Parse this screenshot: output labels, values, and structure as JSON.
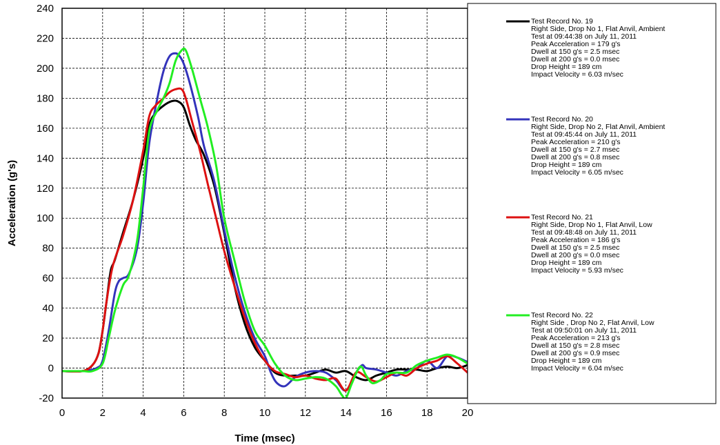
{
  "chart_data": {
    "type": "line",
    "title": "",
    "xlabel": "Time (msec)",
    "ylabel": "Acceleration (g's)",
    "xlim": [
      0,
      20
    ],
    "ylim": [
      -20,
      240
    ],
    "xticks": [
      0,
      2,
      4,
      6,
      8,
      10,
      12,
      14,
      16,
      18,
      20
    ],
    "yticks": [
      -20,
      0,
      20,
      40,
      60,
      80,
      100,
      120,
      140,
      160,
      180,
      200,
      220,
      240
    ],
    "grid": true,
    "legend_position": "right",
    "series": [
      {
        "name": "Test Record No. 19",
        "color": "#000000",
        "details": [
          "Right Side, Drop No 1, Flat Anvil, Ambient",
          "Test at 09:44:38 on July 11, 2011",
          "Peak Acceleration = 179 g's",
          "Dwell at 150 g's = 2.5 msec",
          "Dwell at 200 g's = 0.0 msec",
          "Drop Height = 189 cm",
          "Impact Velocity = 6.03 m/sec"
        ],
        "x": [
          0,
          1,
          1.5,
          1.8,
          2,
          2.2,
          2.4,
          2.6,
          3,
          3.5,
          4,
          4.3,
          4.6,
          5,
          5.4,
          5.7,
          6,
          6.3,
          6.6,
          7,
          7.5,
          8,
          8.5,
          9,
          9.5,
          10,
          10.5,
          11,
          11.5,
          12,
          12.5,
          13,
          13.5,
          14,
          14.5,
          15,
          15.5,
          16,
          16.5,
          17,
          17.5,
          18,
          18.5,
          19,
          19.5,
          20
        ],
        "y": [
          -2,
          -2,
          2,
          10,
          25,
          45,
          65,
          72,
          90,
          112,
          140,
          162,
          170,
          175,
          178,
          178,
          174,
          162,
          152,
          142,
          122,
          90,
          55,
          30,
          14,
          5,
          -3,
          -5,
          -5,
          -5,
          -3,
          -1,
          -3,
          -2,
          -6,
          -8,
          -5,
          -3,
          -1,
          -1,
          -1,
          -2,
          0,
          1,
          0,
          2
        ]
      },
      {
        "name": "Test Record No. 20",
        "color": "#3333bb",
        "details": [
          "Right Side, Drop No 2, Flat Anvil, Ambient",
          "Test at 09:45:44 on July 11, 2011",
          "Peak Acceleration = 210 g's",
          "Dwell at 150 g's = 2.7 msec",
          "Dwell at 200 g's = 0.8 msec",
          "Drop Height = 189 cm",
          "Impact Velocity = 6.05 m/sec"
        ],
        "x": [
          0,
          1,
          1.7,
          2,
          2.3,
          2.6,
          2.8,
          3,
          3.3,
          3.7,
          4,
          4.3,
          4.7,
          5,
          5.3,
          5.6,
          5.8,
          6,
          6.3,
          6.7,
          7,
          7.5,
          8,
          8.5,
          9,
          9.5,
          10,
          10.3,
          10.6,
          11,
          11.5,
          12,
          12.5,
          13,
          13.5,
          14,
          14.5,
          14.8,
          15,
          15.5,
          16,
          16.5,
          17,
          17.5,
          18,
          18.5,
          19,
          19.5,
          20
        ],
        "y": [
          -2,
          -2,
          0,
          5,
          25,
          50,
          58,
          60,
          63,
          80,
          110,
          150,
          180,
          198,
          208,
          210,
          208,
          203,
          190,
          168,
          148,
          125,
          92,
          62,
          38,
          20,
          8,
          -3,
          -10,
          -12,
          -6,
          -3,
          -2,
          -3,
          -8,
          -15,
          -3,
          2,
          0,
          -1,
          -3,
          -5,
          -2,
          0,
          5,
          0,
          8,
          7,
          4
        ]
      },
      {
        "name": "Test Record No. 21",
        "color": "#dd1111",
        "details": [
          "Right Side, Drop No 1, Flat Anvil, Low",
          "Test at 09:48:48 on July 11, 2011",
          "Peak Acceleration = 186 g's",
          "Dwell at 150 g's = 2.5 msec",
          "Dwell at 200 g's = 0.0 msec",
          "Drop Height = 189 cm",
          "Impact Velocity = 5.93 m/sec"
        ],
        "x": [
          0,
          1,
          1.5,
          1.8,
          2,
          2.2,
          2.5,
          3,
          3.5,
          4,
          4.3,
          4.6,
          5,
          5.3,
          5.6,
          5.9,
          6.1,
          6.4,
          6.8,
          7.2,
          7.6,
          8,
          8.5,
          9,
          9.5,
          10,
          10.5,
          11,
          11.5,
          12,
          12.5,
          13,
          13.5,
          14,
          14.5,
          15,
          15.5,
          16,
          16.5,
          17,
          17.5,
          18,
          18.5,
          19,
          19.5,
          20
        ],
        "y": [
          -2,
          -2,
          2,
          10,
          25,
          45,
          68,
          88,
          112,
          145,
          168,
          175,
          180,
          184,
          186,
          186,
          180,
          165,
          145,
          122,
          100,
          78,
          55,
          34,
          17,
          5,
          -2,
          -4,
          -6,
          -5,
          -7,
          -8,
          -7,
          -15,
          -3,
          -6,
          -9,
          -6,
          -3,
          -5,
          0,
          3,
          5,
          8,
          3,
          -3
        ]
      },
      {
        "name": "Test Record No. 22",
        "color": "#22ee22",
        "details": [
          "Right Side , Drop No 2, Flat Anvil, Low",
          "Test at 09:50:01 on July 11, 2011",
          "Peak Acceleration = 213 g's",
          "Dwell at 150 g's = 2.8 msec",
          "Dwell at 200 g's = 0.9 msec",
          "Drop Height = 189 cm",
          "Impact Velocity = 6.04 m/sec"
        ],
        "x": [
          0,
          1,
          1.5,
          2,
          2.3,
          2.6,
          3,
          3.3,
          3.7,
          4,
          4.3,
          4.7,
          5,
          5.3,
          5.6,
          5.9,
          6.1,
          6.4,
          6.8,
          7.2,
          7.6,
          8,
          8.5,
          9,
          9.5,
          10,
          10.5,
          11,
          11.5,
          12,
          12.5,
          13,
          13.5,
          13.8,
          14,
          14.3,
          14.7,
          15,
          15.3,
          15.7,
          16,
          16.5,
          17,
          17.5,
          18,
          18.5,
          19,
          19.5,
          20
        ],
        "y": [
          -2,
          -2,
          -2,
          3,
          20,
          38,
          55,
          62,
          85,
          120,
          158,
          172,
          180,
          190,
          205,
          212,
          212,
          200,
          180,
          160,
          135,
          100,
          72,
          45,
          25,
          15,
          3,
          -5,
          -8,
          -7,
          -6,
          -7,
          -12,
          -18,
          -20,
          -10,
          1,
          -5,
          -10,
          -8,
          -4,
          -3,
          -3,
          2,
          5,
          7,
          9,
          7,
          3
        ]
      }
    ]
  }
}
